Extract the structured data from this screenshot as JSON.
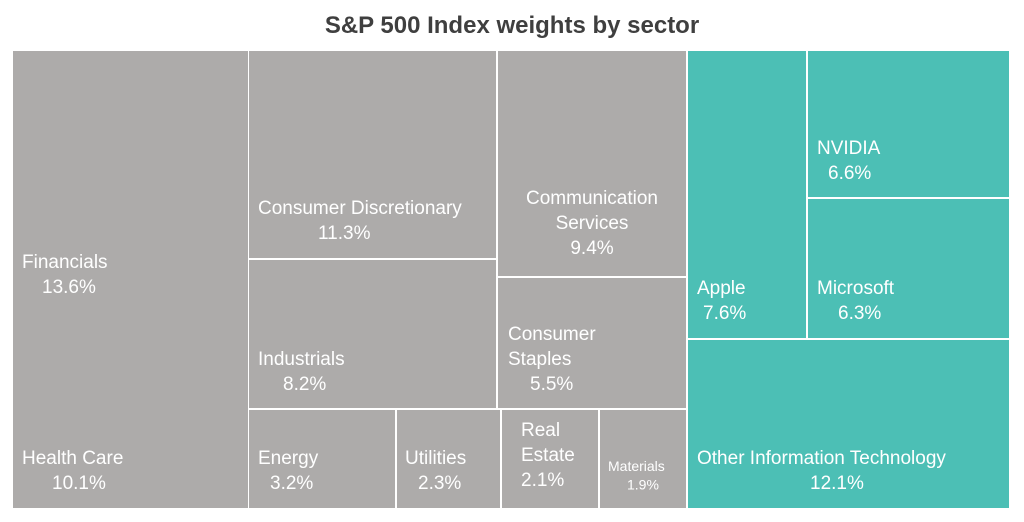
{
  "chart_data": {
    "type": "treemap",
    "title": "S&P 500 Index weights by sector",
    "colors": {
      "sector": "#adabaa",
      "tech": "#4cbfb5",
      "border": "#ffffff"
    },
    "cells": [
      {
        "name": "Financials",
        "lines": [
          "Financials"
        ],
        "value": "13.6%",
        "group": "sector"
      },
      {
        "name": "Health Care",
        "lines": [
          "Health Care"
        ],
        "value": "10.1%",
        "group": "sector"
      },
      {
        "name": "Consumer Discretionary",
        "lines": [
          "Consumer Discretionary"
        ],
        "value": "11.3%",
        "group": "sector"
      },
      {
        "name": "Industrials",
        "lines": [
          "Industrials"
        ],
        "value": "8.2%",
        "group": "sector"
      },
      {
        "name": "Communication Services",
        "lines": [
          "Communication",
          "Services"
        ],
        "value": "9.4%",
        "group": "sector"
      },
      {
        "name": "Consumer Staples",
        "lines": [
          "Consumer",
          "Staples"
        ],
        "value": "5.5%",
        "group": "sector"
      },
      {
        "name": "Energy",
        "lines": [
          "Energy"
        ],
        "value": "3.2%",
        "group": "sector"
      },
      {
        "name": "Utilities",
        "lines": [
          "Utilities"
        ],
        "value": "2.3%",
        "group": "sector"
      },
      {
        "name": "Real Estate",
        "lines": [
          "Real",
          "Estate"
        ],
        "value": "2.1%",
        "group": "sector"
      },
      {
        "name": "Materials",
        "lines": [
          "Materials"
        ],
        "value": "1.9%",
        "group": "sector"
      },
      {
        "name": "Apple",
        "lines": [
          "Apple"
        ],
        "value": "7.6%",
        "group": "tech"
      },
      {
        "name": "NVIDIA",
        "lines": [
          "NVIDIA"
        ],
        "value": "6.6%",
        "group": "tech"
      },
      {
        "name": "Microsoft",
        "lines": [
          "Microsoft"
        ],
        "value": "6.3%",
        "group": "tech"
      },
      {
        "name": "Other Information Technology",
        "lines": [
          "Other Information Technology"
        ],
        "value": "12.1%",
        "group": "tech"
      }
    ]
  }
}
